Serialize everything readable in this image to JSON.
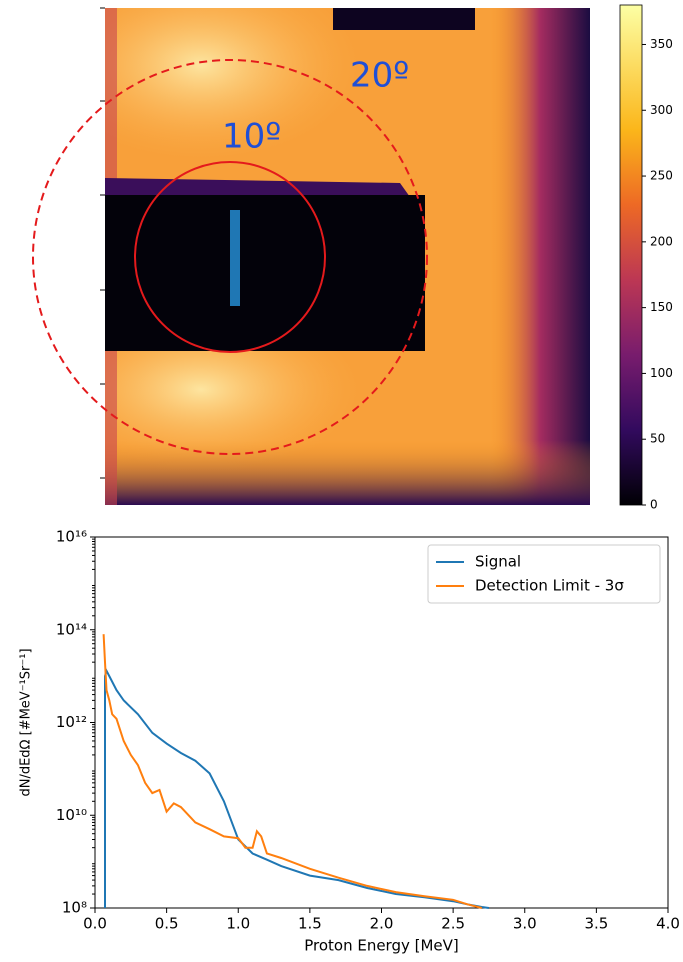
{
  "chart_data": [
    {
      "type": "heatmap",
      "annotations": [
        "20º",
        "10º"
      ],
      "clim": [
        0,
        380
      ],
      "cticks": [
        0,
        50,
        100,
        150,
        200,
        250,
        300,
        350
      ]
    },
    {
      "type": "line",
      "xlabel": "Proton Energy [MeV]",
      "ylabel": "dN/dEdΩ [#MeV⁻¹Sr⁻¹]",
      "xlim": [
        0,
        4
      ],
      "ylim": [
        100000000,
        10000000000000000
      ],
      "log_y": true,
      "xticks": [
        {
          "value": 0,
          "label": "0.0"
        },
        0.5,
        {
          "value": 1,
          "label": "1.0"
        },
        1.5,
        {
          "value": 2,
          "label": "2.0"
        },
        2.5,
        {
          "value": 3,
          "label": "3.0"
        },
        3.5,
        {
          "value": 4,
          "label": "4.0"
        }
      ],
      "yticks": [
        {
          "value": 100000000,
          "label": "10⁸"
        },
        {
          "value": 10000000000,
          "label": "10¹⁰"
        },
        {
          "value": 1000000000000,
          "label": "10¹²"
        },
        {
          "value": 100000000000000,
          "label": "10¹⁴"
        },
        {
          "value": 10000000000000000,
          "label": "10¹⁶"
        }
      ],
      "legend": "upper right",
      "series": [
        {
          "name": "Signal",
          "color": "#1f77b4",
          "x": [
            0.07,
            0.07,
            0.08,
            0.1,
            0.15,
            0.2,
            0.3,
            0.4,
            0.5,
            0.6,
            0.7,
            0.8,
            0.9,
            1.0,
            1.1,
            1.2,
            1.3,
            1.5,
            1.7,
            1.9,
            2.1,
            2.3,
            2.5,
            2.6,
            2.7,
            2.75
          ],
          "values": [
            100000000,
            10000000000000,
            13000000000000,
            10000000000000,
            5000000000000,
            3000000000000,
            1500000000000,
            600000000000,
            350000000000,
            220000000000,
            150000000000,
            80000000000,
            20000000000,
            3000000000,
            1500000000,
            1100000000,
            800000000,
            500000000,
            400000000,
            270000000,
            200000000,
            170000000,
            140000000,
            120000000,
            105000000,
            100000000
          ]
        },
        {
          "name": "Detection Limit - 3σ",
          "color": "#ff7f0e",
          "x": [
            0.06,
            0.07,
            0.08,
            0.1,
            0.12,
            0.15,
            0.2,
            0.25,
            0.3,
            0.35,
            0.4,
            0.45,
            0.5,
            0.55,
            0.6,
            0.7,
            0.8,
            0.9,
            1.0,
            1.05,
            1.1,
            1.13,
            1.16,
            1.2,
            1.3,
            1.5,
            1.7,
            1.9,
            2.1,
            2.3,
            2.5,
            2.6,
            2.7
          ],
          "values": [
            80000000000000,
            20000000000000,
            5000000000000,
            3000000000000,
            1500000000000,
            1200000000000,
            400000000000,
            200000000000,
            120000000000,
            50000000000,
            30000000000,
            35000000000,
            12000000000,
            18000000000,
            15000000000,
            7000000000,
            5000000000,
            3500000000,
            3200000000,
            2000000000,
            2000000000,
            4500000000,
            3500000000,
            1500000000,
            1200000000,
            700000000,
            450000000,
            300000000,
            220000000,
            180000000,
            150000000,
            120000000,
            100000000
          ]
        }
      ]
    }
  ]
}
